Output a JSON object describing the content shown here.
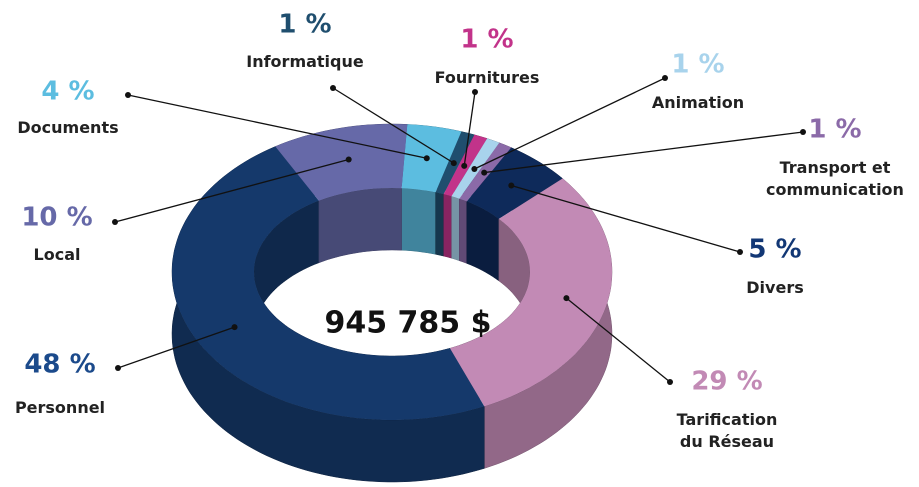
{
  "chart_data": {
    "type": "pie",
    "donut": true,
    "center_label": "945 785 $",
    "categories": [
      "Documents",
      "Informatique",
      "Fournitures",
      "Animation",
      "Transport et communication",
      "Divers",
      "Tarification du Réseau",
      "Personnel",
      "Local"
    ],
    "values": [
      4,
      1,
      1,
      1,
      1,
      5,
      29,
      48,
      10
    ],
    "value_labels": [
      "4 %",
      "1 %",
      "1 %",
      "1 %",
      "1 %",
      "5 %",
      "29 %",
      "48 %",
      "10 %"
    ],
    "colors": [
      "#5cbde0",
      "#1f4e6e",
      "#c2338a",
      "#a8d3ec",
      "#8b6aa8",
      "#0e2a5a",
      "#c28ab5",
      "#15396b",
      "#6669a8"
    ]
  }
}
